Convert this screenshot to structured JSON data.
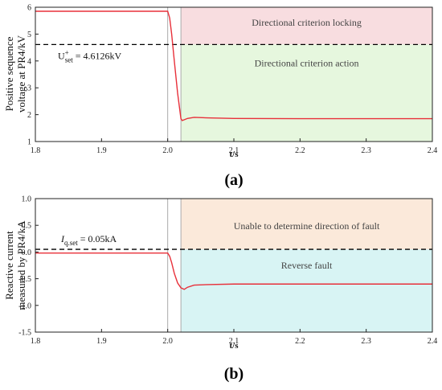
{
  "colors": {
    "curve": "#e8303a",
    "threshold": "#000000",
    "vline": "#aaaaaa",
    "locking_fill": "#f8dde0",
    "action_fill": "#e6f7de",
    "unable_fill": "#fbe9da",
    "reverse_fill": "#d8f4f4"
  },
  "chart_data": [
    {
      "type": "line",
      "panel_label": "(a)",
      "xlabel": "t/s",
      "ylabel_lines": [
        "Positive sequence",
        "voltage at PR4/kV"
      ],
      "xlim": [
        1.8,
        2.4
      ],
      "ylim": [
        1,
        6
      ],
      "x_ticks": [
        "1.8",
        "1.9",
        "2.0",
        "2.1",
        "2.2",
        "2.3",
        "2.4"
      ],
      "y_ticks": [
        "1",
        "2",
        "3",
        "4",
        "5",
        "6"
      ],
      "threshold": {
        "value": 4.6126,
        "label_main": "U",
        "label_sup": "+",
        "label_sub": "set",
        "label_tail": " = 4.6126kV"
      },
      "fault_time": 2.0,
      "detect_time": 2.02,
      "regions": [
        {
          "name": "locking",
          "label": "Directional criterion locking",
          "y_from": 4.6126,
          "y_to": 6,
          "color_key": "locking_fill"
        },
        {
          "name": "action",
          "label": "Directional criterion action",
          "y_from": 1,
          "y_to": 4.6126,
          "color_key": "action_fill"
        }
      ],
      "series": [
        {
          "x": [
            1.8,
            2.0,
            2.003,
            2.006,
            2.01,
            2.015,
            2.02,
            2.022,
            2.03,
            2.04,
            2.06,
            2.1,
            2.2,
            2.3,
            2.4
          ],
          "y": [
            5.85,
            5.85,
            5.6,
            5.0,
            4.0,
            2.8,
            1.85,
            1.78,
            1.86,
            1.9,
            1.88,
            1.86,
            1.85,
            1.85,
            1.85
          ]
        }
      ]
    },
    {
      "type": "line",
      "panel_label": "(b)",
      "xlabel": "t/s",
      "ylabel_lines": [
        "Reactive current",
        "measured by PR4/kA"
      ],
      "xlim": [
        1.8,
        2.4
      ],
      "ylim": [
        -1.5,
        1.0
      ],
      "x_ticks": [
        "1.8",
        "1.9",
        "2.0",
        "2.1",
        "2.2",
        "2.3",
        "2.4"
      ],
      "y_ticks": [
        "-1.5",
        "-1.0",
        "-0.5",
        "0.0",
        "0.5",
        "1.0"
      ],
      "threshold": {
        "value": 0.05,
        "label_main": "I",
        "label_sup": "",
        "label_sub": "q.set",
        "label_tail": " = 0.05kA"
      },
      "fault_time": 2.0,
      "detect_time": 2.02,
      "regions": [
        {
          "name": "unable",
          "label": "Unable to determine direction of fault",
          "y_from": 0.05,
          "y_to": 1.0,
          "color_key": "unable_fill"
        },
        {
          "name": "reverse",
          "label": "Reverse fault",
          "y_from": -1.5,
          "y_to": 0.05,
          "color_key": "reverse_fill"
        }
      ],
      "series": [
        {
          "x": [
            1.8,
            2.0,
            2.003,
            2.006,
            2.01,
            2.015,
            2.02,
            2.025,
            2.03,
            2.04,
            2.06,
            2.1,
            2.2,
            2.3,
            2.4
          ],
          "y": [
            -0.02,
            -0.02,
            -0.08,
            -0.2,
            -0.4,
            -0.58,
            -0.67,
            -0.7,
            -0.66,
            -0.62,
            -0.61,
            -0.6,
            -0.6,
            -0.6,
            -0.6
          ]
        }
      ]
    }
  ]
}
